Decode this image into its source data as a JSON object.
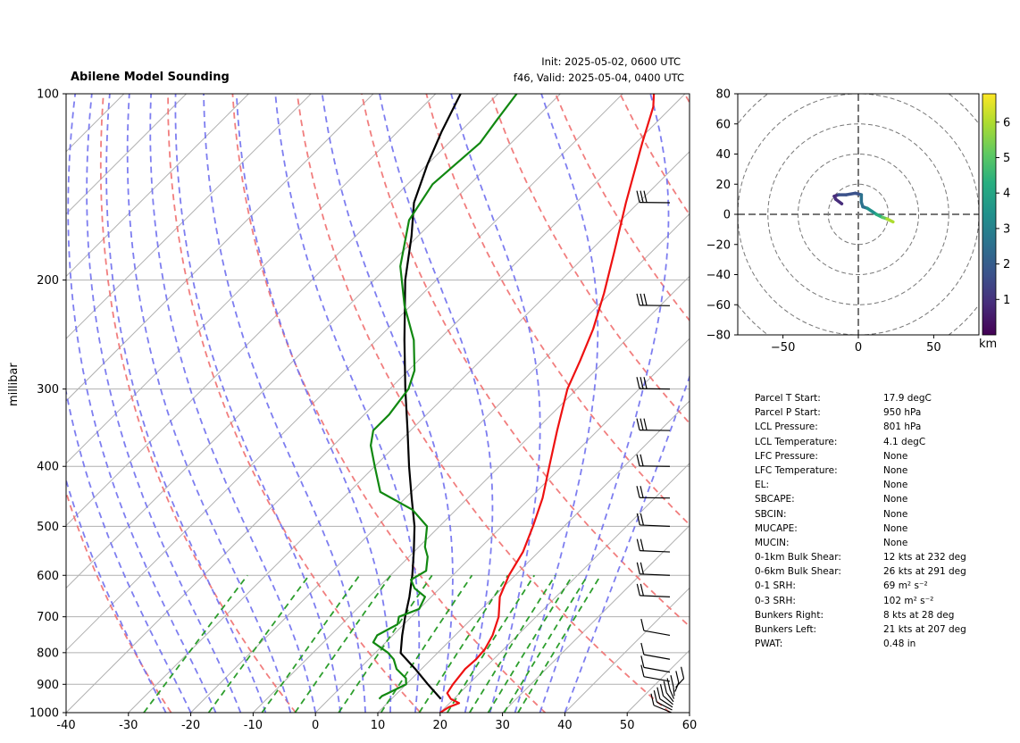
{
  "title": "Abilene Model Sounding",
  "init_text": "Init: 2025-05-02, 0600 UTC",
  "valid_text": "f46, Valid: 2025-05-04, 0400 UTC",
  "colors": {
    "temperature": "#ee1111",
    "parcel": "#000000",
    "dewpoint": "#118811",
    "dry_adiabat": "#f07070",
    "moist_adiabat": "#7070ee",
    "mixing_ratio": "#229922",
    "isotherm": "#aaaaaa"
  },
  "chart_data": [
    {
      "type": "line",
      "subtype": "skew-t log-p",
      "ylabel": "millibar",
      "xlim": [
        -40,
        60
      ],
      "ylim": [
        1000,
        100
      ],
      "x_ticks": [
        -40,
        -30,
        -20,
        -10,
        0,
        10,
        20,
        30,
        40,
        50,
        60
      ],
      "y_ticks": [
        100,
        200,
        300,
        400,
        500,
        600,
        700,
        800,
        900,
        1000
      ],
      "grid": true,
      "series": [
        {
          "role": "temperature",
          "points": [
            [
              1000,
              20
            ],
            [
              980,
              20.5
            ],
            [
              965,
              21.5
            ],
            [
              950,
              19.5
            ],
            [
              930,
              18
            ],
            [
              900,
              17.5
            ],
            [
              850,
              17
            ],
            [
              820,
              17.2
            ],
            [
              790,
              17
            ],
            [
              750,
              16
            ],
            [
              700,
              14
            ],
            [
              650,
              11
            ],
            [
              600,
              9
            ],
            [
              550,
              7.5
            ],
            [
              500,
              5
            ],
            [
              450,
              2
            ],
            [
              400,
              -2
            ],
            [
              350,
              -6.5
            ],
            [
              300,
              -11.5
            ],
            [
              270,
              -14
            ],
            [
              240,
              -17
            ],
            [
              210,
              -21
            ],
            [
              180,
              -26
            ],
            [
              150,
              -32
            ],
            [
              120,
              -39
            ],
            [
              105,
              -43
            ],
            [
              100,
              -45
            ]
          ]
        },
        {
          "role": "parcel",
          "points": [
            [
              950,
              17.9
            ],
            [
              900,
              13.5
            ],
            [
              850,
              9
            ],
            [
              801,
              4.1
            ],
            [
              750,
              1.5
            ],
            [
              700,
              -1
            ],
            [
              650,
              -3.5
            ],
            [
              600,
              -6.5
            ],
            [
              550,
              -10
            ],
            [
              500,
              -14
            ],
            [
              450,
              -19
            ],
            [
              400,
              -24.5
            ],
            [
              350,
              -30.5
            ],
            [
              300,
              -37.5
            ],
            [
              250,
              -45.5
            ],
            [
              200,
              -55
            ],
            [
              170,
              -61
            ],
            [
              150,
              -66
            ],
            [
              130,
              -70
            ],
            [
              115,
              -73
            ],
            [
              100,
              -76
            ]
          ]
        },
        {
          "role": "dewpoint",
          "points": [
            [
              950,
              8
            ],
            [
              940,
              8
            ],
            [
              930,
              8.5
            ],
            [
              900,
              10
            ],
            [
              880,
              9
            ],
            [
              850,
              6
            ],
            [
              820,
              4
            ],
            [
              800,
              2
            ],
            [
              770,
              -2
            ],
            [
              750,
              -2.5
            ],
            [
              720,
              -1
            ],
            [
              700,
              -2
            ],
            [
              680,
              0
            ],
            [
              650,
              -1
            ],
            [
              630,
              -4
            ],
            [
              610,
              -6
            ],
            [
              590,
              -5
            ],
            [
              560,
              -7
            ],
            [
              540,
              -9
            ],
            [
              500,
              -12
            ],
            [
              470,
              -17
            ],
            [
              440,
              -25
            ],
            [
              400,
              -30
            ],
            [
              370,
              -34
            ],
            [
              350,
              -36
            ],
            [
              330,
              -36
            ],
            [
              300,
              -37
            ],
            [
              280,
              -39
            ],
            [
              250,
              -44
            ],
            [
              220,
              -51
            ],
            [
              190,
              -58
            ],
            [
              160,
              -64
            ],
            [
              140,
              -66
            ],
            [
              120,
              -65
            ],
            [
              110,
              -66
            ],
            [
              100,
              -67
            ]
          ]
        }
      ],
      "wind_barbs_pressure": [
        1000,
        990,
        980,
        970,
        960,
        950,
        940,
        925,
        910,
        890,
        860,
        820,
        750,
        650,
        600,
        550,
        500,
        450,
        400,
        350,
        300,
        220,
        150
      ]
    },
    {
      "type": "line",
      "subtype": "hodograph",
      "xlim": [
        -80,
        80
      ],
      "ylim": [
        -80,
        80
      ],
      "x_ticks": [
        -50,
        0,
        50
      ],
      "y_ticks": [
        -80,
        -60,
        -40,
        -20,
        0,
        20,
        40,
        60,
        80
      ],
      "ring_spacing": 20,
      "colorbar_label": "km",
      "colorbar_ticks": [
        1,
        2,
        3,
        4,
        5,
        6
      ],
      "colorbar_range": [
        0,
        6.8
      ],
      "points": [
        [
          -11,
          7,
          0.05
        ],
        [
          -15,
          10,
          0.3
        ],
        [
          -16,
          12,
          0.6
        ],
        [
          -13,
          13,
          0.9
        ],
        [
          -8,
          13,
          1.2
        ],
        [
          -2,
          14,
          1.5
        ],
        [
          2,
          13,
          1.8
        ],
        [
          2,
          8,
          2.1
        ],
        [
          3,
          5,
          2.4
        ],
        [
          6,
          4,
          2.8
        ],
        [
          9,
          2,
          3.2
        ],
        [
          12,
          0,
          3.8
        ],
        [
          16,
          -2,
          4.5
        ],
        [
          19,
          -3,
          5.3
        ],
        [
          23,
          -5,
          6.2
        ]
      ]
    }
  ],
  "stats": [
    {
      "label": "Parcel T Start:",
      "value": "17.9 degC"
    },
    {
      "label": "Parcel P Start:",
      "value": "950 hPa"
    },
    {
      "label": "LCL Pressure:",
      "value": "801 hPa"
    },
    {
      "label": "LCL Temperature:",
      "value": "4.1 degC"
    },
    {
      "label": "LFC Pressure:",
      "value": "None"
    },
    {
      "label": "LFC Temperature:",
      "value": "None"
    },
    {
      "label": "EL:",
      "value": "None"
    },
    {
      "label": "SBCAPE:",
      "value": "None"
    },
    {
      "label": "SBCIN:",
      "value": "None"
    },
    {
      "label": "MUCAPE:",
      "value": "None"
    },
    {
      "label": "MUCIN:",
      "value": "None"
    },
    {
      "label": "0-1km Bulk Shear:",
      "value": "12 kts at 232 deg"
    },
    {
      "label": "0-6km Bulk Shear:",
      "value": "26 kts at 291 deg"
    },
    {
      "label": "0-1 SRH:",
      "value": "69 m² s⁻²"
    },
    {
      "label": "0-3 SRH:",
      "value": "102 m² s⁻²"
    },
    {
      "label": "Bunkers Right:",
      "value": "8 kts at 28 deg"
    },
    {
      "label": "Bunkers Left:",
      "value": "21 kts at 207 deg"
    },
    {
      "label": "PWAT:",
      "value": "0.48 in"
    }
  ]
}
